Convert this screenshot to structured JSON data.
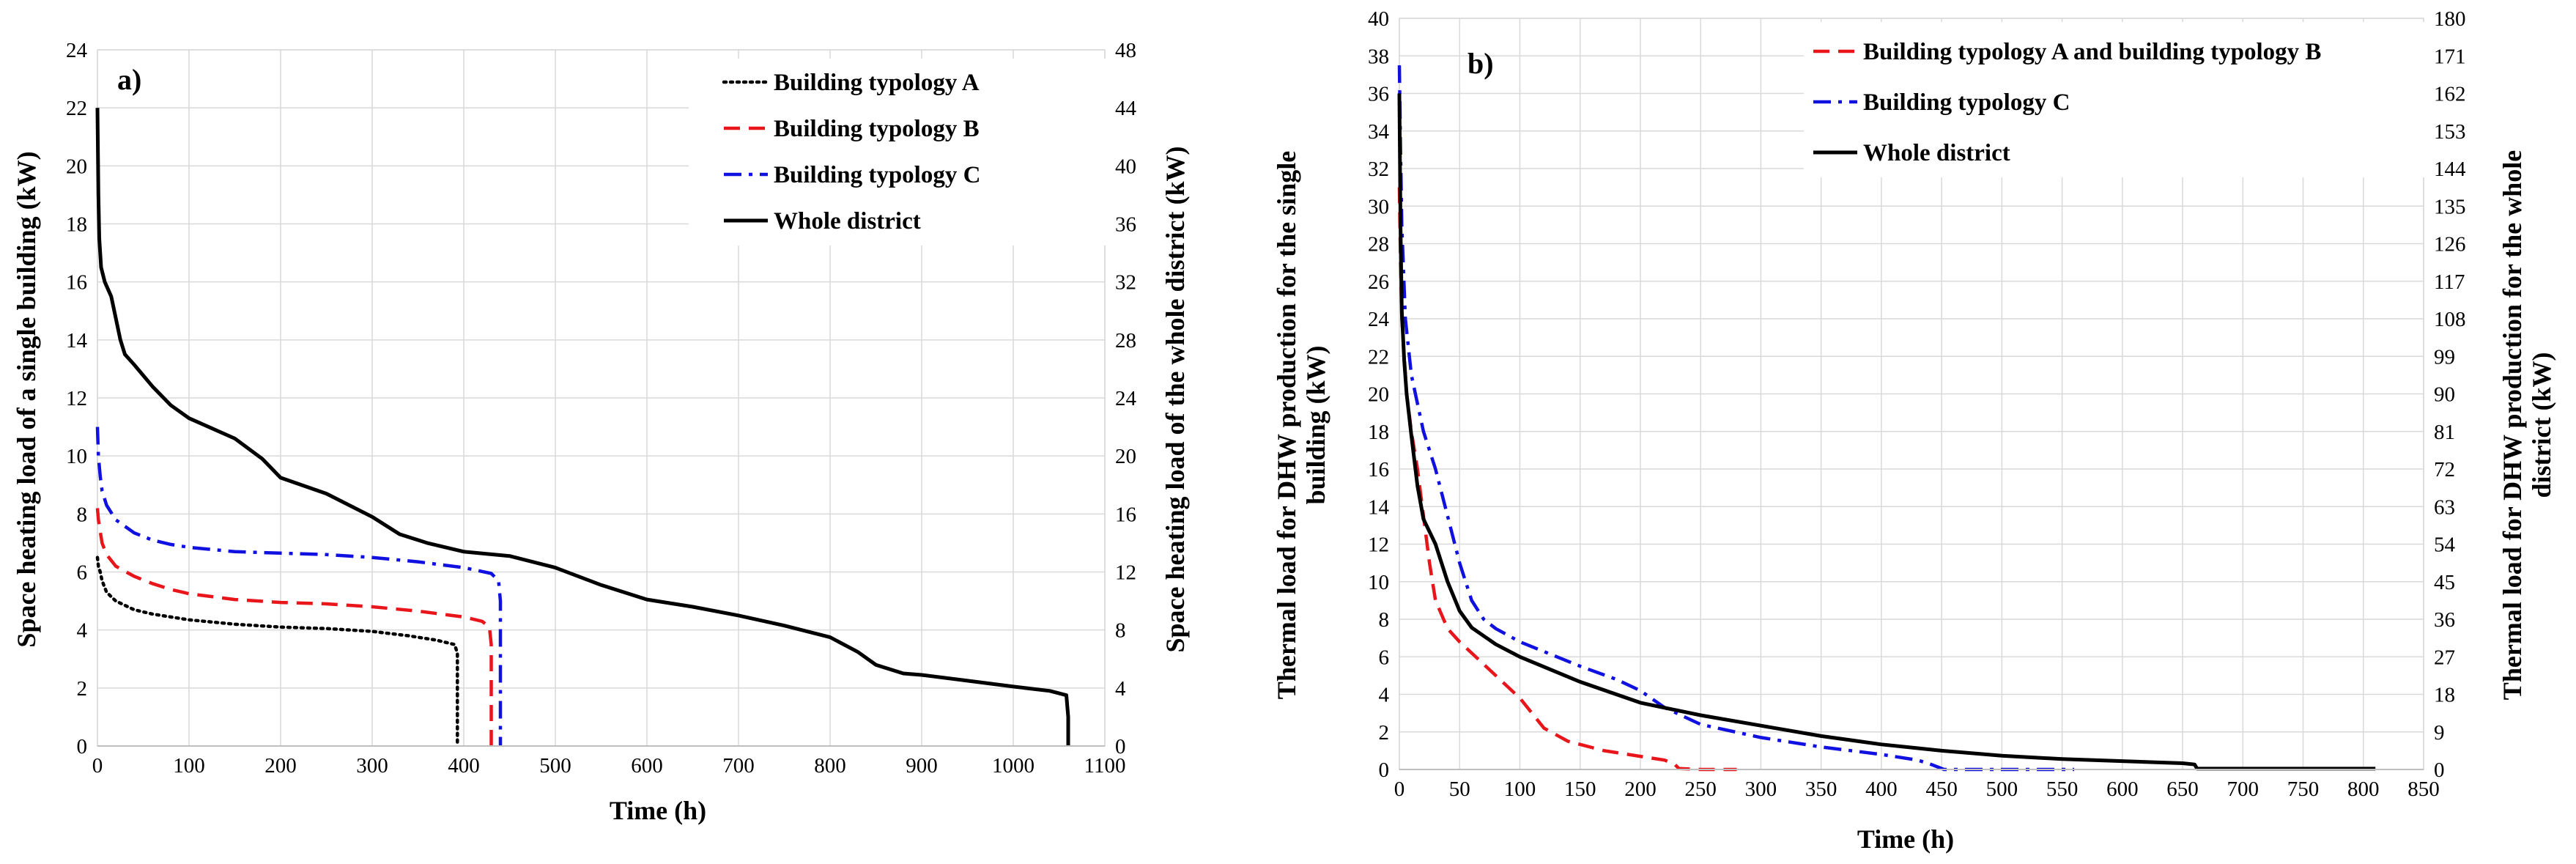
{
  "chart_data": [
    {
      "type": "line",
      "panel_label": "a)",
      "title": "",
      "xlabel": "Time (h)",
      "ylabel": "Space heating load of a single building (kW)",
      "y2label": "Space heating load of the whole district (kW)",
      "xlim": [
        0,
        1100
      ],
      "ylim": [
        0,
        24
      ],
      "y2lim": [
        0,
        48
      ],
      "xticks": [
        "0",
        "100",
        "200",
        "300",
        "400",
        "500",
        "600",
        "700",
        "800",
        "900",
        "1000",
        "1100"
      ],
      "yticks": [
        "0",
        "2",
        "4",
        "6",
        "8",
        "10",
        "12",
        "14",
        "16",
        "18",
        "20",
        "22",
        "24"
      ],
      "y2ticks": [
        "0",
        "4",
        "8",
        "12",
        "16",
        "20",
        "24",
        "28",
        "32",
        "36",
        "40",
        "44",
        "48"
      ],
      "grid": true,
      "legend_position": "top-right",
      "series": [
        {
          "name": "Building typology A",
          "axis": "left",
          "style": "dotted",
          "color": "#000000",
          "x": [
            0,
            1,
            3,
            5,
            10,
            20,
            40,
            60,
            80,
            100,
            150,
            200,
            250,
            300,
            340,
            370,
            390,
            393,
            393
          ],
          "y": [
            6.5,
            6.2,
            6.0,
            5.7,
            5.3,
            5.0,
            4.7,
            4.55,
            4.45,
            4.35,
            4.2,
            4.1,
            4.05,
            3.95,
            3.8,
            3.65,
            3.5,
            3.2,
            0
          ]
        },
        {
          "name": "Building typology B",
          "axis": "left",
          "style": "dashed",
          "color": "#e8151b",
          "x": [
            0,
            1,
            3,
            5,
            10,
            20,
            40,
            60,
            80,
            100,
            150,
            200,
            250,
            300,
            350,
            400,
            420,
            428,
            430,
            430
          ],
          "y": [
            8.2,
            7.8,
            7.4,
            7.0,
            6.6,
            6.2,
            5.85,
            5.6,
            5.4,
            5.25,
            5.05,
            4.95,
            4.9,
            4.8,
            4.65,
            4.45,
            4.3,
            4.1,
            3.5,
            0
          ]
        },
        {
          "name": "Building typology C",
          "axis": "left",
          "style": "dashdot",
          "color": "#1010e0",
          "x": [
            0,
            1,
            3,
            5,
            10,
            20,
            40,
            60,
            80,
            100,
            150,
            200,
            250,
            300,
            350,
            400,
            430,
            438,
            440,
            440
          ],
          "y": [
            11.0,
            10.0,
            9.3,
            8.8,
            8.3,
            7.8,
            7.35,
            7.1,
            6.95,
            6.85,
            6.7,
            6.65,
            6.6,
            6.5,
            6.35,
            6.15,
            5.95,
            5.7,
            5.0,
            0
          ]
        },
        {
          "name": "Whole district",
          "axis": "right",
          "style": "solid",
          "color": "#000000",
          "x": [
            0,
            1,
            2,
            4,
            8,
            15,
            25,
            30,
            40,
            60,
            80,
            100,
            150,
            180,
            200,
            250,
            300,
            330,
            360,
            400,
            450,
            500,
            550,
            600,
            650,
            700,
            750,
            800,
            830,
            850,
            880,
            900,
            950,
            1000,
            1040,
            1058,
            1060,
            1060
          ],
          "y": [
            44,
            38,
            35,
            33,
            32,
            31,
            28,
            27,
            26.3,
            24.8,
            23.5,
            22.6,
            21.2,
            19.8,
            18.5,
            17.4,
            15.8,
            14.6,
            14.0,
            13.4,
            13.1,
            12.3,
            11.1,
            10.1,
            9.6,
            9.0,
            8.3,
            7.5,
            6.5,
            5.6,
            5.0,
            4.9,
            4.5,
            4.1,
            3.8,
            3.5,
            2.0,
            0
          ]
        }
      ]
    },
    {
      "type": "line",
      "panel_label": "b)",
      "title": "",
      "xlabel": "Time (h)",
      "ylabel_lines": [
        "Thermal load for DHW production for the single",
        "building (kW)"
      ],
      "y2label_lines": [
        "Thermal load for DHW production for the whole",
        "district  (kW)"
      ],
      "xlim": [
        0,
        850
      ],
      "ylim": [
        0,
        40
      ],
      "y2lim": [
        0,
        180
      ],
      "xticks": [
        "0",
        "50",
        "100",
        "150",
        "200",
        "250",
        "300",
        "350",
        "400",
        "450",
        "500",
        "550",
        "600",
        "650",
        "700",
        "750",
        "800",
        "850"
      ],
      "yticks": [
        "0",
        "2",
        "4",
        "6",
        "8",
        "10",
        "12",
        "14",
        "16",
        "18",
        "20",
        "22",
        "24",
        "26",
        "28",
        "30",
        "32",
        "34",
        "36",
        "38",
        "40"
      ],
      "y2ticks": [
        "0",
        "9",
        "18",
        "27",
        "36",
        "45",
        "54",
        "63",
        "72",
        "81",
        "90",
        "99",
        "108",
        "117",
        "126",
        "135",
        "144",
        "153",
        "162",
        "171",
        "180"
      ],
      "grid": true,
      "legend_position": "top-right",
      "series": [
        {
          "name": "Building typology A and building typology B",
          "axis": "left",
          "style": "dashed",
          "color": "#e8151b",
          "x": [
            0,
            1,
            2,
            4,
            6,
            10,
            15,
            20,
            25,
            30,
            40,
            50,
            60,
            80,
            100,
            120,
            140,
            170,
            200,
            220,
            228,
            232,
            250,
            280
          ],
          "y": [
            31,
            27,
            24,
            22,
            20,
            18,
            16,
            13.5,
            11,
            9,
            7.5,
            6.8,
            6.2,
            5.0,
            3.8,
            2.2,
            1.5,
            1.0,
            0.7,
            0.5,
            0.3,
            0.05,
            0,
            0
          ]
        },
        {
          "name": "Building typology C",
          "axis": "left",
          "style": "dashdot",
          "color": "#1010e0",
          "x": [
            0,
            1,
            2,
            5,
            10,
            20,
            30,
            40,
            50,
            60,
            70,
            80,
            100,
            150,
            180,
            200,
            220,
            250,
            300,
            350,
            400,
            430,
            440,
            448,
            452,
            500,
            560
          ],
          "y": [
            37.5,
            33,
            29,
            24,
            21,
            18,
            16,
            13.5,
            11,
            9,
            8,
            7.5,
            6.8,
            5.5,
            4.8,
            4.2,
            3.3,
            2.4,
            1.7,
            1.2,
            0.8,
            0.5,
            0.3,
            0.1,
            0,
            0,
            0
          ]
        },
        {
          "name": "Whole district",
          "axis": "right",
          "style": "solid",
          "color": "#000000",
          "x": [
            0,
            1,
            2,
            4,
            6,
            10,
            15,
            20,
            25,
            30,
            40,
            50,
            60,
            80,
            100,
            150,
            200,
            250,
            300,
            350,
            400,
            450,
            500,
            550,
            600,
            650,
            660,
            662,
            700,
            750,
            810
          ],
          "y": [
            162,
            130,
            110,
            98,
            90,
            80,
            68,
            60,
            57,
            54,
            45,
            38,
            34,
            30,
            27,
            21,
            16,
            13,
            10.5,
            8,
            6,
            4.5,
            3.3,
            2.5,
            2.0,
            1.5,
            1.2,
            0.2,
            0.2,
            0.2,
            0.2
          ]
        }
      ]
    }
  ]
}
